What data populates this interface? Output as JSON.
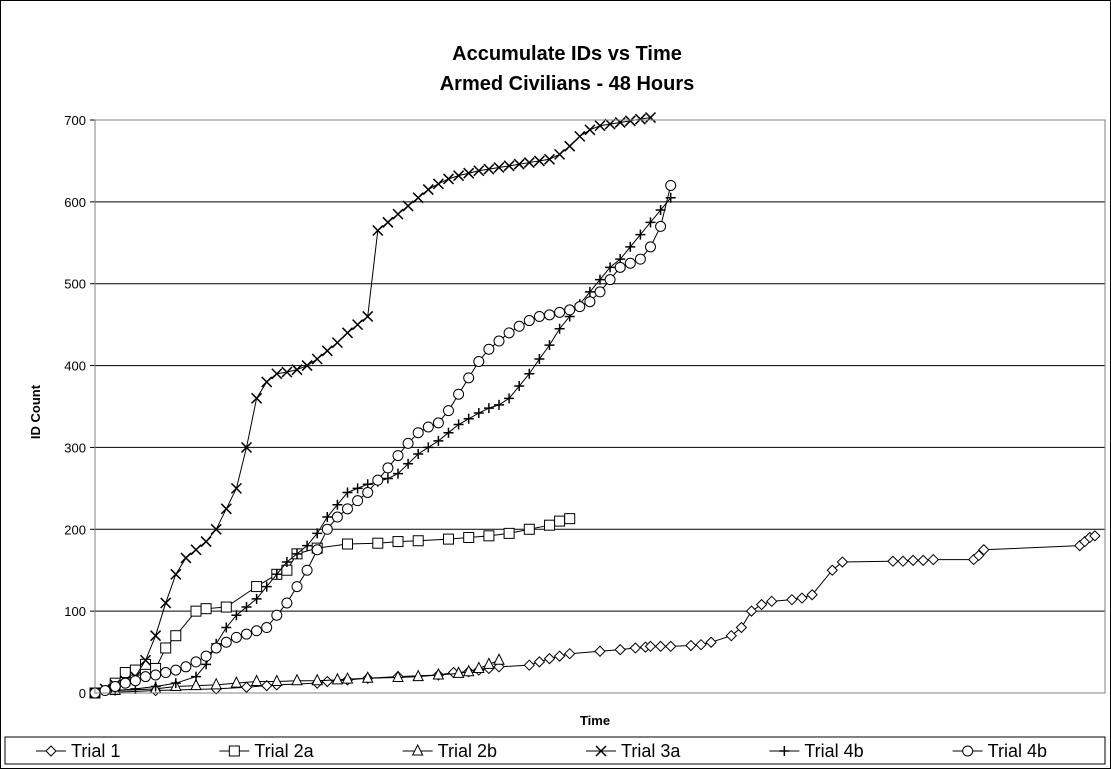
{
  "chart_data": {
    "type": "line",
    "title": "Accumulate IDs vs Time",
    "subtitle": "Armed Civilians - 48 Hours",
    "xlabel": "Time",
    "ylabel": "ID Count",
    "xlim": [
      0,
      100
    ],
    "ylim": [
      0,
      700
    ],
    "y_ticks": [
      0,
      100,
      200,
      300,
      400,
      500,
      600,
      700
    ],
    "grid": "horizontal",
    "legend_position": "bottom",
    "series": [
      {
        "name": "Trial 1",
        "marker": "diamond",
        "x": [
          0,
          6,
          12,
          15,
          17,
          18,
          22,
          23,
          25,
          27,
          30,
          34,
          35.5,
          37,
          38,
          39,
          40,
          43,
          44,
          45,
          46,
          47,
          50,
          52,
          53.5,
          54.5,
          55,
          56,
          57,
          59,
          60,
          61,
          63,
          64,
          65,
          66,
          67,
          69,
          70,
          71,
          73,
          74,
          79,
          80,
          81,
          82,
          83,
          87,
          87.5,
          88,
          97.5,
          98,
          98.5,
          99
        ],
        "values": [
          0,
          3,
          5,
          7,
          9,
          10,
          12,
          14,
          16,
          18,
          20,
          22,
          25,
          26,
          28,
          30,
          32,
          34,
          38,
          42,
          45,
          48,
          51,
          53,
          55,
          56,
          57,
          57,
          57,
          58,
          59,
          62,
          70,
          80,
          100,
          108,
          112,
          114,
          116,
          120,
          150,
          160,
          161,
          161,
          162,
          162,
          163,
          163,
          168,
          175,
          180,
          185,
          190,
          192
        ]
      },
      {
        "name": "Trial 2a",
        "marker": "square",
        "x": [
          0,
          2,
          3,
          4,
          5,
          6,
          7,
          8,
          10,
          11,
          13,
          16,
          18,
          19,
          20,
          22,
          25,
          28,
          30,
          32,
          35,
          37,
          39,
          41,
          43,
          45,
          46,
          47
        ],
        "values": [
          0,
          12,
          25,
          28,
          35,
          30,
          55,
          70,
          100,
          103,
          105,
          130,
          145,
          150,
          170,
          177,
          182,
          183,
          185,
          186,
          188,
          190,
          192,
          195,
          200,
          205,
          210,
          213
        ]
      },
      {
        "name": "Trial 2b",
        "marker": "triangle",
        "x": [
          0,
          2,
          6,
          8,
          10,
          12,
          14,
          16,
          18,
          20,
          22,
          24,
          25,
          27,
          30,
          32,
          34,
          36,
          37,
          38,
          39,
          40
        ],
        "values": [
          0,
          3,
          5,
          8,
          9,
          10,
          12,
          14,
          14,
          15,
          15,
          16,
          17,
          18,
          19,
          20,
          22,
          24,
          26,
          30,
          35,
          40
        ]
      },
      {
        "name": "Trial 3a",
        "marker": "x",
        "x": [
          0,
          1,
          2,
          3,
          4,
          5,
          6,
          7,
          8,
          9,
          10,
          11,
          12,
          13,
          14,
          15,
          16,
          17,
          18,
          19,
          20,
          21,
          22,
          23,
          24,
          25,
          26,
          27,
          28,
          29,
          30,
          31,
          32,
          33,
          34,
          35,
          36,
          37,
          38,
          39,
          40,
          41,
          42,
          43,
          44,
          45,
          46,
          47,
          48,
          49,
          50,
          51,
          52,
          53,
          54,
          55
        ],
        "values": [
          0,
          5,
          10,
          15,
          20,
          40,
          70,
          110,
          145,
          165,
          175,
          185,
          200,
          225,
          250,
          300,
          360,
          380,
          390,
          392,
          395,
          400,
          408,
          418,
          428,
          440,
          450,
          460,
          565,
          575,
          585,
          595,
          605,
          615,
          622,
          628,
          632,
          635,
          638,
          640,
          642,
          644,
          646,
          648,
          650,
          652,
          658,
          668,
          680,
          688,
          693,
          695,
          697,
          699,
          701,
          703
        ]
      },
      {
        "name": "Trial 4b",
        "marker": "plus",
        "x": [
          0,
          2,
          4,
          6,
          8,
          10,
          11,
          12,
          13,
          14,
          15,
          16,
          17,
          18,
          19,
          20,
          21,
          22,
          23,
          24,
          25,
          26,
          27,
          28,
          29,
          30,
          31,
          32,
          33,
          34,
          35,
          36,
          37,
          38,
          39,
          40,
          41,
          42,
          43,
          44,
          45,
          46,
          47,
          48,
          49,
          50,
          51,
          52,
          53,
          54,
          55,
          56,
          57
        ],
        "values": [
          0,
          3,
          5,
          8,
          12,
          20,
          35,
          60,
          80,
          95,
          105,
          115,
          130,
          145,
          160,
          170,
          180,
          195,
          215,
          230,
          245,
          250,
          255,
          258,
          262,
          268,
          280,
          292,
          300,
          308,
          318,
          328,
          335,
          342,
          348,
          352,
          360,
          375,
          390,
          408,
          425,
          445,
          460,
          475,
          490,
          505,
          520,
          530,
          545,
          560,
          575,
          590,
          605
        ]
      },
      {
        "name": "Trial 4b",
        "marker": "circle",
        "x": [
          0,
          1,
          2,
          3,
          4,
          5,
          6,
          7,
          8,
          9,
          10,
          11,
          12,
          13,
          14,
          15,
          16,
          17,
          18,
          19,
          20,
          21,
          22,
          23,
          24,
          25,
          26,
          27,
          28,
          29,
          30,
          31,
          32,
          33,
          34,
          35,
          36,
          37,
          38,
          39,
          40,
          41,
          42,
          43,
          44,
          45,
          46,
          47,
          48,
          49,
          50,
          51,
          52,
          53,
          54,
          55,
          56,
          57
        ],
        "values": [
          0,
          3,
          8,
          12,
          15,
          20,
          22,
          25,
          28,
          32,
          38,
          45,
          55,
          62,
          68,
          72,
          76,
          80,
          95,
          110,
          130,
          150,
          175,
          200,
          215,
          225,
          235,
          245,
          260,
          275,
          290,
          305,
          318,
          325,
          330,
          345,
          365,
          385,
          405,
          420,
          430,
          440,
          448,
          455,
          460,
          462,
          465,
          468,
          472,
          478,
          490,
          505,
          520,
          525,
          530,
          545,
          570,
          620
        ]
      }
    ]
  },
  "legend": {
    "items": [
      "Trial 1",
      "Trial 2a",
      "Trial 2b",
      "Trial 3a",
      "Trial 4b",
      "Trial 4b"
    ]
  }
}
